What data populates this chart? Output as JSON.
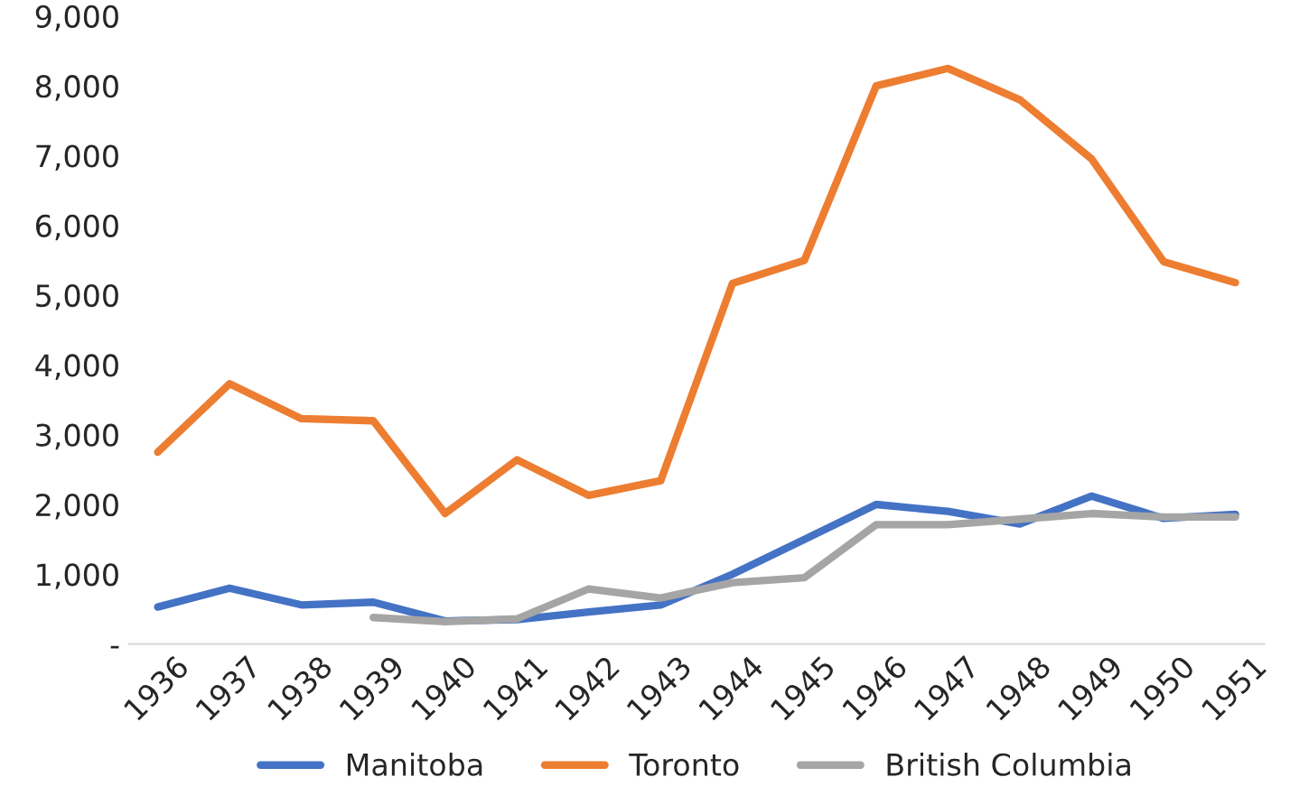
{
  "chart_data": {
    "type": "line",
    "categories": [
      "1936",
      "1937",
      "1938",
      "1939",
      "1940",
      "1941",
      "1942",
      "1943",
      "1944",
      "1945",
      "1946",
      "1947",
      "1948",
      "1949",
      "1950",
      "1951"
    ],
    "series": [
      {
        "name": "Manitoba",
        "color": "#4472c4",
        "values": [
          530,
          800,
          560,
          600,
          330,
          350,
          460,
          560,
          1000,
          1500,
          2000,
          1900,
          1720,
          2120,
          1800,
          1860
        ]
      },
      {
        "name": "Toronto",
        "color": "#ed7d31",
        "values": [
          2750,
          3730,
          3230,
          3200,
          1870,
          2640,
          2130,
          2340,
          5170,
          5500,
          8000,
          8250,
          7800,
          6950,
          5480,
          5180
        ]
      },
      {
        "name": "British Columbia",
        "color": "#a5a5a5",
        "values": [
          null,
          null,
          null,
          380,
          320,
          360,
          790,
          660,
          880,
          950,
          1710,
          1710,
          1790,
          1870,
          1820,
          1820
        ]
      }
    ],
    "ylim": [
      0,
      9000
    ],
    "yticks": [
      {
        "value": 0,
        "label": "-"
      },
      {
        "value": 1000,
        "label": "1,000"
      },
      {
        "value": 2000,
        "label": "2,000"
      },
      {
        "value": 3000,
        "label": "3,000"
      },
      {
        "value": 4000,
        "label": "4,000"
      },
      {
        "value": 5000,
        "label": "5,000"
      },
      {
        "value": 6000,
        "label": "6,000"
      },
      {
        "value": 7000,
        "label": "7,000"
      },
      {
        "value": 8000,
        "label": "8,000"
      },
      {
        "value": 9000,
        "label": "9,000"
      }
    ],
    "grid": false,
    "legend": "bottom",
    "marker": "none",
    "line_style": "solid"
  }
}
